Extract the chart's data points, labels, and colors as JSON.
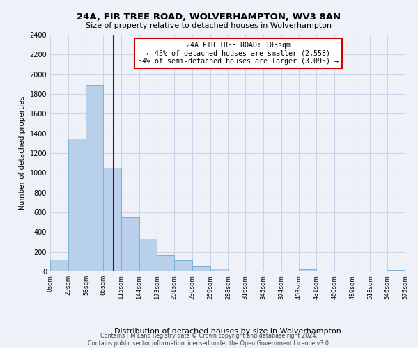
{
  "title": "24A, FIR TREE ROAD, WOLVERHAMPTON, WV3 8AN",
  "subtitle": "Size of property relative to detached houses in Wolverhampton",
  "xlabel": "Distribution of detached houses by size in Wolverhampton",
  "ylabel": "Number of detached properties",
  "bin_edges": [
    0,
    29,
    58,
    86,
    115,
    144,
    173,
    201,
    230,
    259,
    288,
    316,
    345,
    374,
    403,
    431,
    460,
    489,
    518,
    546,
    575
  ],
  "counts": [
    120,
    1350,
    1890,
    1050,
    550,
    335,
    160,
    110,
    60,
    30,
    0,
    0,
    0,
    0,
    20,
    0,
    0,
    0,
    0,
    15
  ],
  "bar_color": "#b8d0ea",
  "bar_edge_color": "#7bafd4",
  "property_size": 103,
  "vline_color": "#8b0000",
  "annotation_title": "24A FIR TREE ROAD: 103sqm",
  "annotation_line1": "← 45% of detached houses are smaller (2,558)",
  "annotation_line2": "54% of semi-detached houses are larger (3,095) →",
  "annotation_box_edge": "#cc0000",
  "grid_color": "#c8d4e8",
  "bg_color": "#eef2f8",
  "footer_line1": "Contains HM Land Registry data © Crown copyright and database right 2024.",
  "footer_line2": "Contains public sector information licensed under the Open Government Licence v3.0.",
  "ylim": [
    0,
    2400
  ],
  "tick_labels": [
    "0sqm",
    "29sqm",
    "58sqm",
    "86sqm",
    "115sqm",
    "144sqm",
    "173sqm",
    "201sqm",
    "230sqm",
    "259sqm",
    "288sqm",
    "316sqm",
    "345sqm",
    "374sqm",
    "403sqm",
    "431sqm",
    "460sqm",
    "489sqm",
    "518sqm",
    "546sqm",
    "575sqm"
  ]
}
